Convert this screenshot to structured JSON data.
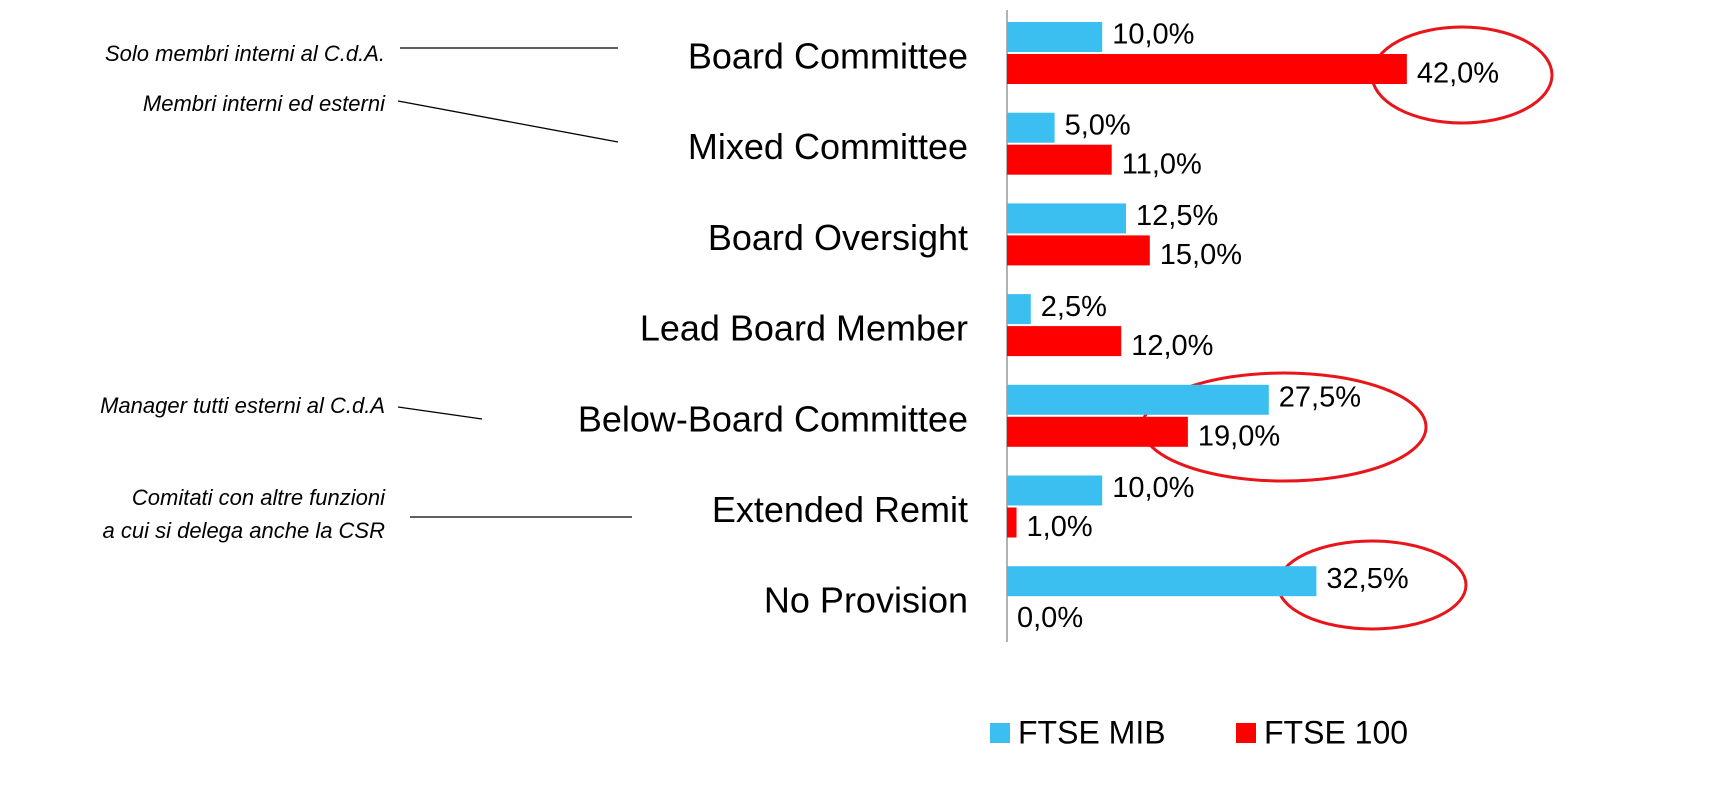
{
  "chart_data": {
    "type": "barh",
    "categories": [
      "Board Committee",
      "Mixed Committee",
      "Board Oversight",
      "Lead Board Member",
      "Below-Board Committee",
      "Extended Remit",
      "No Provision"
    ],
    "series": [
      {
        "name": "FTSE MIB",
        "color": "#3bbff0",
        "values": [
          10.0,
          5.0,
          12.5,
          2.5,
          27.5,
          10.0,
          32.5
        ],
        "value_labels": [
          "10,0%",
          "5,0%",
          "12,5%",
          "2,5%",
          "27,5%",
          "10,0%",
          "32,5%"
        ]
      },
      {
        "name": "FTSE 100",
        "color": "#ff0000",
        "values": [
          42.0,
          11.0,
          15.0,
          12.0,
          19.0,
          1.0,
          0.0
        ],
        "value_labels": [
          "42,0%",
          "11,0%",
          "15,0%",
          "12,0%",
          "19,0%",
          "1,0%",
          "0,0%"
        ]
      }
    ],
    "annotations": [
      {
        "lines": [
          "Solo membri interni al C.d.A."
        ]
      },
      {
        "lines": [
          "Membri interni ed esterni"
        ]
      },
      {
        "lines": [
          "Manager tutti esterni al C.d.A"
        ]
      },
      {
        "lines": [
          "Comitati con altre funzioni",
          "a cui si delega anche la CSR"
        ]
      }
    ],
    "legend": "bottom"
  }
}
